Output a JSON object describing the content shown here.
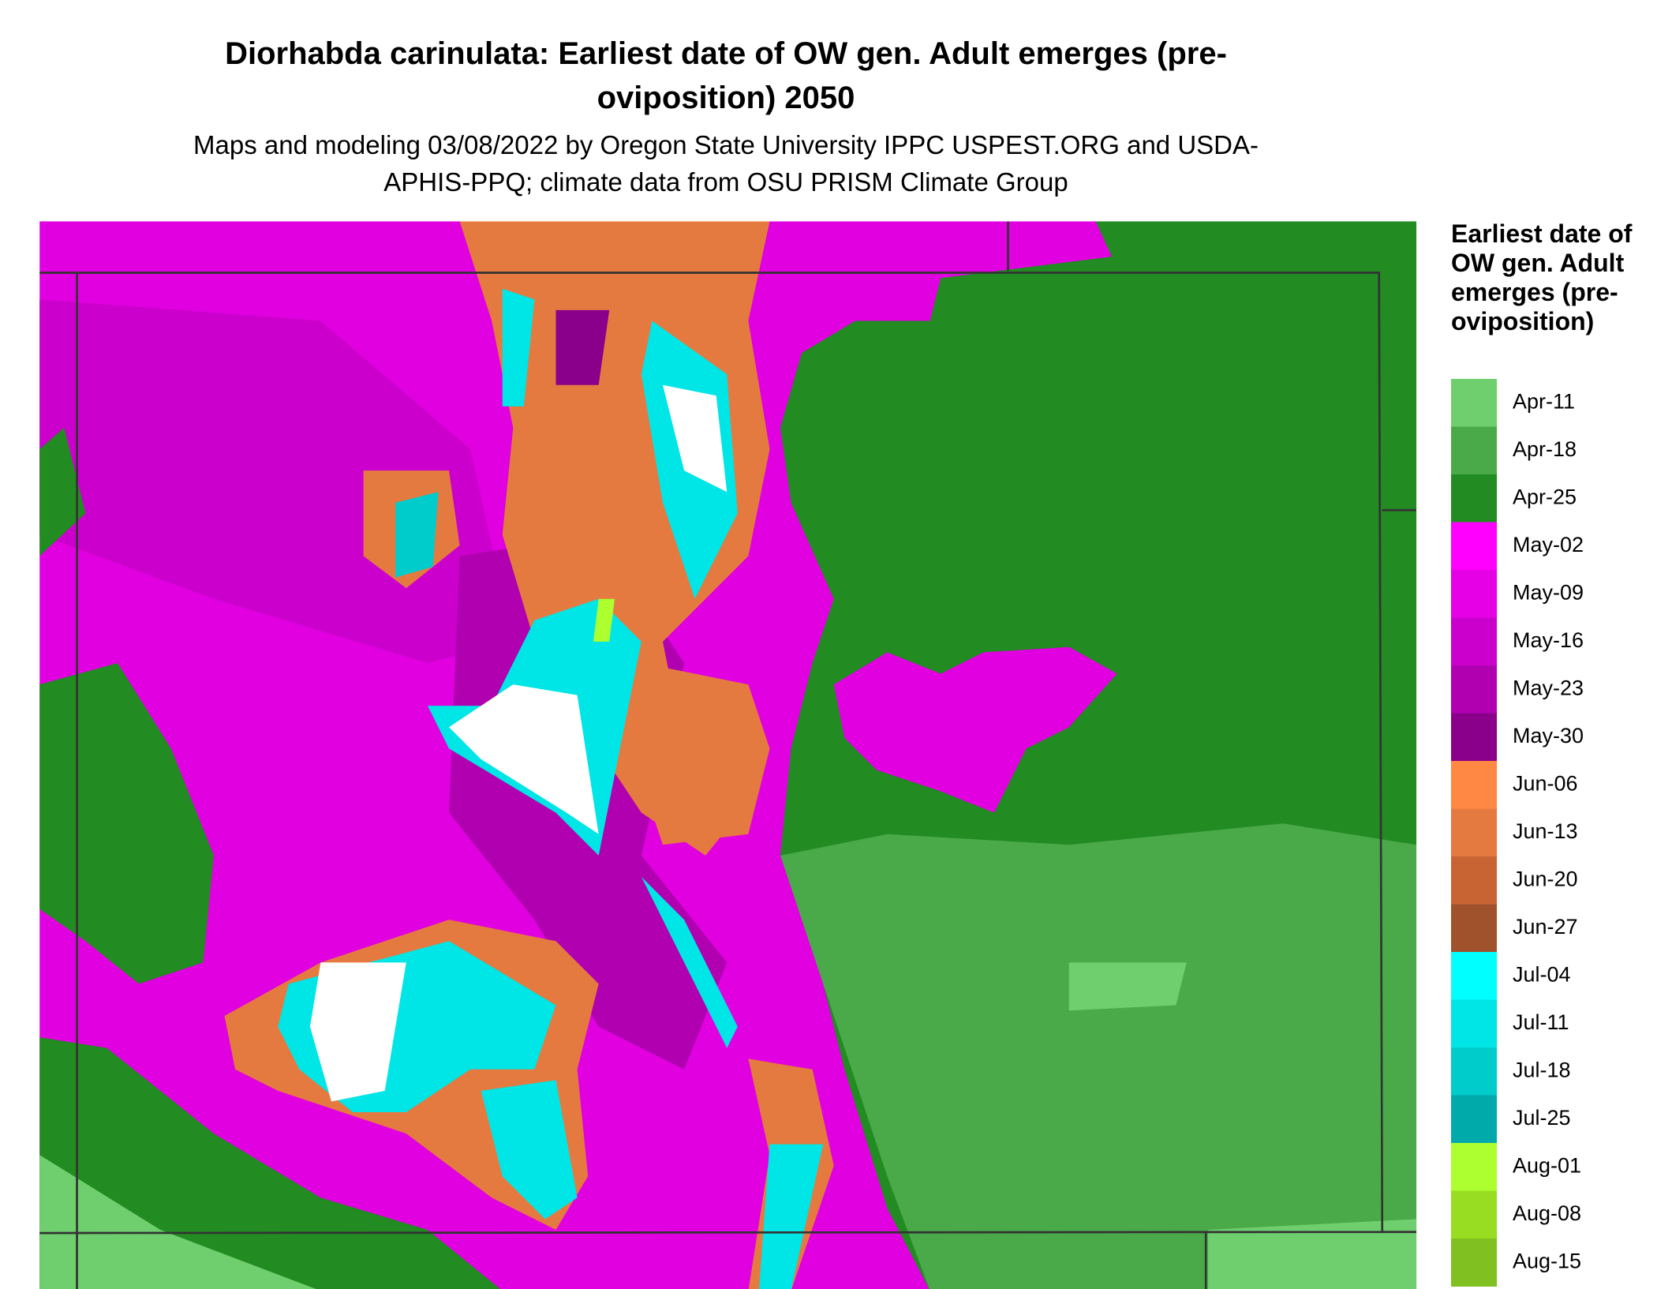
{
  "title": "Diorhabda carinulata: Earliest date of OW gen. Adult emerges (pre-oviposition) 2050",
  "subtitle": "Maps and modeling 03/08/2022 by Oregon State University IPPC USPEST.ORG and USDA-APHIS-PPQ; climate data from OSU PRISM Climate Group",
  "legend": {
    "title": "Earliest date of OW gen. Adult emerges (pre-oviposition)",
    "items": [
      {
        "label": "Apr-11",
        "color": "#6fcf6f"
      },
      {
        "label": "Apr-18",
        "color": "#4aaa4a"
      },
      {
        "label": "Apr-25",
        "color": "#228b22"
      },
      {
        "label": "May-02",
        "color": "#ff00ff"
      },
      {
        "label": "May-09",
        "color": "#e600e6"
      },
      {
        "label": "May-16",
        "color": "#cc00cc"
      },
      {
        "label": "May-23",
        "color": "#b000b0"
      },
      {
        "label": "May-30",
        "color": "#8b008b"
      },
      {
        "label": "Jun-06",
        "color": "#ff8844"
      },
      {
        "label": "Jun-13",
        "color": "#e57a40"
      },
      {
        "label": "Jun-20",
        "color": "#c86433"
      },
      {
        "label": "Jun-27",
        "color": "#a0522d"
      },
      {
        "label": "Jul-04",
        "color": "#00ffff"
      },
      {
        "label": "Jul-11",
        "color": "#00e5e5"
      },
      {
        "label": "Jul-18",
        "color": "#00cccc"
      },
      {
        "label": "Jul-25",
        "color": "#00aaaa"
      },
      {
        "label": "Aug-01",
        "color": "#adff2f"
      },
      {
        "label": "Aug-08",
        "color": "#99dd22"
      },
      {
        "label": "Aug-15",
        "color": "#80c020"
      }
    ]
  }
}
